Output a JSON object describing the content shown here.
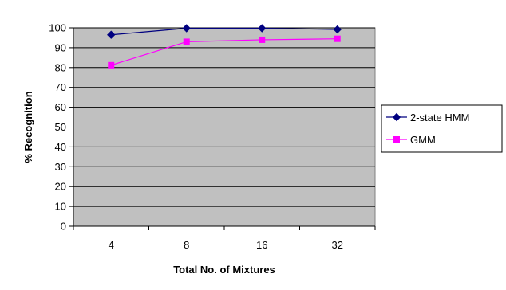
{
  "chart_data": {
    "type": "line",
    "title": "",
    "xlabel": "Total No. of Mixtures",
    "ylabel": "% Recognition",
    "categories": [
      "4",
      "8",
      "16",
      "32"
    ],
    "ylim": [
      0,
      100
    ],
    "yticks": [
      0,
      10,
      20,
      30,
      40,
      50,
      60,
      70,
      80,
      90,
      100
    ],
    "grid": "horizontal",
    "legend_position": "right",
    "plot_background": "#c0c0c0",
    "series": [
      {
        "name": "2-state HMM",
        "values": [
          96.5,
          99.8,
          99.8,
          99.2
        ],
        "color": "#000080",
        "marker": "diamond"
      },
      {
        "name": "GMM",
        "values": [
          81.2,
          93.0,
          94.0,
          94.5
        ],
        "color": "#ff00ff",
        "marker": "square"
      }
    ]
  }
}
